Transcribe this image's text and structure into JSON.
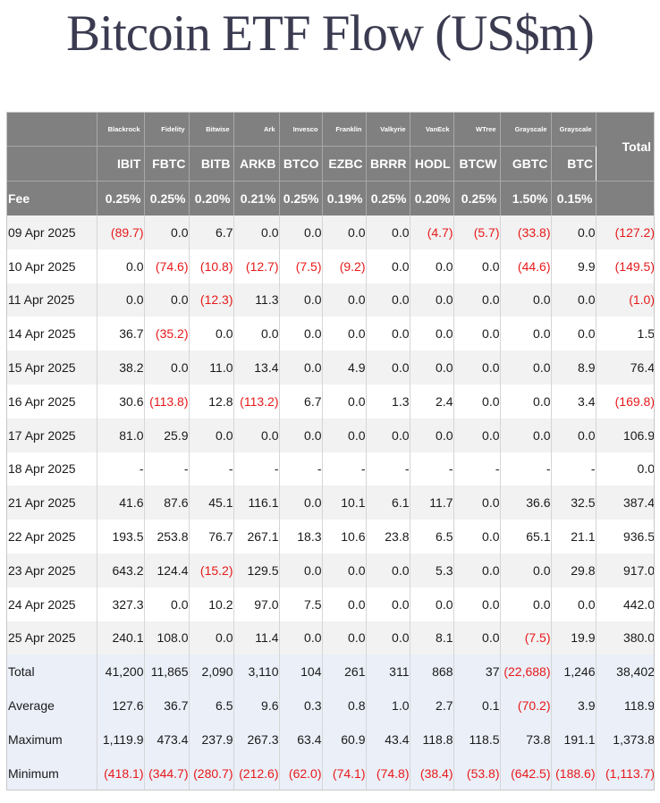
{
  "title": "Bitcoin ETF Flow (US$m)",
  "header": {
    "issuers": [
      "Blackrock",
      "Fidelity",
      "Bitwise",
      "Ark",
      "Invesco",
      "Franklin",
      "Valkyrie",
      "VanEck",
      "WTree",
      "Grayscale",
      "Grayscale"
    ],
    "total_label": "Total",
    "tickers": [
      "IBIT",
      "FBTC",
      "BITB",
      "ARKB",
      "BTCO",
      "EZBC",
      "BRRR",
      "HODL",
      "BTCW",
      "GBTC",
      "BTC"
    ],
    "fee_label": "Fee",
    "fees": [
      "0.25%",
      "0.25%",
      "0.20%",
      "0.21%",
      "0.25%",
      "0.19%",
      "0.25%",
      "0.20%",
      "0.25%",
      "1.50%",
      "0.15%"
    ]
  },
  "rows": [
    {
      "date": "09 Apr 2025",
      "values": [
        "(89.7)",
        "0.0",
        "6.7",
        "0.0",
        "0.0",
        "0.0",
        "0.0",
        "(4.7)",
        "(5.7)",
        "(33.8)",
        "0.0",
        "(127.2)"
      ]
    },
    {
      "date": "10 Apr 2025",
      "values": [
        "0.0",
        "(74.6)",
        "(10.8)",
        "(12.7)",
        "(7.5)",
        "(9.2)",
        "0.0",
        "0.0",
        "0.0",
        "(44.6)",
        "9.9",
        "(149.5)"
      ]
    },
    {
      "date": "11 Apr 2025",
      "values": [
        "0.0",
        "0.0",
        "(12.3)",
        "11.3",
        "0.0",
        "0.0",
        "0.0",
        "0.0",
        "0.0",
        "0.0",
        "0.0",
        "(1.0)"
      ]
    },
    {
      "date": "14 Apr 2025",
      "values": [
        "36.7",
        "(35.2)",
        "0.0",
        "0.0",
        "0.0",
        "0.0",
        "0.0",
        "0.0",
        "0.0",
        "0.0",
        "0.0",
        "1.5"
      ]
    },
    {
      "date": "15 Apr 2025",
      "values": [
        "38.2",
        "0.0",
        "11.0",
        "13.4",
        "0.0",
        "4.9",
        "0.0",
        "0.0",
        "0.0",
        "0.0",
        "8.9",
        "76.4"
      ]
    },
    {
      "date": "16 Apr 2025",
      "values": [
        "30.6",
        "(113.8)",
        "12.8",
        "(113.2)",
        "6.7",
        "0.0",
        "1.3",
        "2.4",
        "0.0",
        "0.0",
        "3.4",
        "(169.8)"
      ]
    },
    {
      "date": "17 Apr 2025",
      "values": [
        "81.0",
        "25.9",
        "0.0",
        "0.0",
        "0.0",
        "0.0",
        "0.0",
        "0.0",
        "0.0",
        "0.0",
        "0.0",
        "106.9"
      ]
    },
    {
      "date": "18 Apr 2025",
      "values": [
        "-",
        "-",
        "-",
        "-",
        "-",
        "-",
        "-",
        "-",
        "-",
        "-",
        "-",
        "0.0"
      ]
    },
    {
      "date": "21 Apr 2025",
      "values": [
        "41.6",
        "87.6",
        "45.1",
        "116.1",
        "0.0",
        "10.1",
        "6.1",
        "11.7",
        "0.0",
        "36.6",
        "32.5",
        "387.4"
      ]
    },
    {
      "date": "22 Apr 2025",
      "values": [
        "193.5",
        "253.8",
        "76.7",
        "267.1",
        "18.3",
        "10.6",
        "23.8",
        "6.5",
        "0.0",
        "65.1",
        "21.1",
        "936.5"
      ]
    },
    {
      "date": "23 Apr 2025",
      "values": [
        "643.2",
        "124.4",
        "(15.2)",
        "129.5",
        "0.0",
        "0.0",
        "0.0",
        "5.3",
        "0.0",
        "0.0",
        "29.8",
        "917.0"
      ]
    },
    {
      "date": "24 Apr 2025",
      "values": [
        "327.3",
        "0.0",
        "10.2",
        "97.0",
        "7.5",
        "0.0",
        "0.0",
        "0.0",
        "0.0",
        "0.0",
        "0.0",
        "442.0"
      ]
    },
    {
      "date": "25 Apr 2025",
      "values": [
        "240.1",
        "108.0",
        "0.0",
        "11.4",
        "0.0",
        "0.0",
        "0.0",
        "8.1",
        "0.0",
        "(7.5)",
        "19.9",
        "380.0"
      ]
    }
  ],
  "summary": [
    {
      "label": "Total",
      "values": [
        "41,200",
        "11,865",
        "2,090",
        "3,110",
        "104",
        "261",
        "311",
        "868",
        "37",
        "(22,688)",
        "1,246",
        "38,402"
      ]
    },
    {
      "label": "Average",
      "values": [
        "127.6",
        "36.7",
        "6.5",
        "9.6",
        "0.3",
        "0.8",
        "1.0",
        "2.7",
        "0.1",
        "(70.2)",
        "3.9",
        "118.9"
      ]
    },
    {
      "label": "Maximum",
      "values": [
        "1,119.9",
        "473.4",
        "237.9",
        "267.3",
        "63.4",
        "60.9",
        "43.4",
        "118.8",
        "118.5",
        "73.8",
        "191.1",
        "1,373.8"
      ]
    },
    {
      "label": "Minimum",
      "values": [
        "(418.1)",
        "(344.7)",
        "(280.7)",
        "(212.6)",
        "(62.0)",
        "(74.1)",
        "(74.8)",
        "(38.4)",
        "(53.8)",
        "(642.5)",
        "(188.6)",
        "(1,113.7)"
      ]
    }
  ],
  "colors": {
    "header_bg": "#808080",
    "negative": "#e8191a",
    "summary_bg": "#eaeff8",
    "stripe": "#f2f2f2",
    "title": "#3a3b50"
  }
}
